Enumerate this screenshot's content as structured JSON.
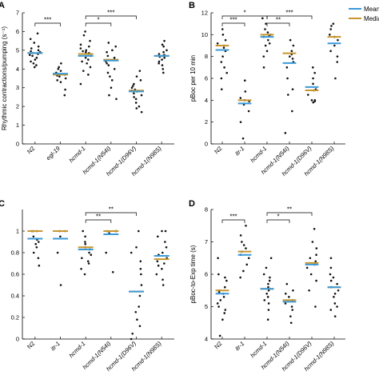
{
  "colors": {
    "mean": "#3a9ad9",
    "median": "#c8962d",
    "points": "#111111"
  },
  "legend": [
    {
      "name": "Mean",
      "color": "#3a9ad9"
    },
    {
      "name": "Median",
      "color": "#c8962d"
    }
  ],
  "chart_data": [
    {
      "panel": "A",
      "type": "scatter",
      "ylabel": "Rhythmic contractions/pumping (s⁻¹)",
      "ylim": [
        0,
        7
      ],
      "yticks": [
        0,
        1,
        2,
        3,
        4,
        5,
        6,
        7
      ],
      "categories": [
        {
          "label": "N2",
          "italic": false
        },
        {
          "label": "egl-19",
          "italic": true
        },
        {
          "label": "hcmd-1",
          "italic": true
        },
        {
          "label": "hcmd-1(N54I)",
          "italic": true
        },
        {
          "label": "hcmd-1(D96V)",
          "italic": true
        },
        {
          "label": "hcmd-1(N98S)",
          "italic": true
        }
      ],
      "mean": [
        4.85,
        3.75,
        4.7,
        4.45,
        2.8,
        4.7
      ],
      "median": [
        4.85,
        3.7,
        4.8,
        4.5,
        2.85,
        4.7
      ],
      "points": [
        [
          5.9,
          5.6,
          5.4,
          5.2,
          5.1,
          5.0,
          4.95,
          4.9,
          4.85,
          4.8,
          4.75,
          4.7,
          4.6,
          4.5,
          4.4,
          4.3,
          4.2,
          4.1
        ],
        [
          4.3,
          4.1,
          4.0,
          3.9,
          3.8,
          3.75,
          3.7,
          3.65,
          3.6,
          3.5,
          3.4,
          3.3,
          2.9,
          2.6
        ],
        [
          6.0,
          5.8,
          5.5,
          5.3,
          5.2,
          5.1,
          5.0,
          4.95,
          4.9,
          4.85,
          4.8,
          4.7,
          4.6,
          4.5,
          4.4,
          4.3,
          4.1,
          3.9,
          3.7,
          3.2
        ],
        [
          5.4,
          5.2,
          5.0,
          4.9,
          4.7,
          4.6,
          4.5,
          4.4,
          4.3,
          4.2,
          4.0,
          3.8,
          3.6,
          3.4,
          3.0,
          2.6,
          2.4
        ],
        [
          3.9,
          3.6,
          3.4,
          3.2,
          3.1,
          3.0,
          2.9,
          2.85,
          2.8,
          2.7,
          2.6,
          2.5,
          2.4,
          2.2,
          2.0,
          1.9,
          1.7
        ],
        [
          5.5,
          5.3,
          5.2,
          5.0,
          4.9,
          4.8,
          4.75,
          4.7,
          4.65,
          4.6,
          4.5,
          4.4,
          4.3,
          4.2,
          4.0,
          3.8
        ]
      ],
      "significance": [
        {
          "from": 0,
          "to": 1,
          "label": "***",
          "level": 0
        },
        {
          "from": 2,
          "to": 4,
          "label": "***",
          "level": 1
        },
        {
          "from": 2,
          "to": 3,
          "label": "*",
          "level": 0
        }
      ]
    },
    {
      "panel": "B",
      "type": "scatter",
      "ylabel": "pBoc per 10 min",
      "ylim": [
        0,
        12
      ],
      "yticks": [
        0,
        2,
        4,
        6,
        8,
        10,
        12
      ],
      "categories": [
        {
          "label": "N2",
          "italic": false
        },
        {
          "label": "itr-1",
          "italic": true
        },
        {
          "label": "hcmd-1",
          "italic": true
        },
        {
          "label": "hcmd-1(N54I)",
          "italic": true
        },
        {
          "label": "hcmd-1(D96V)",
          "italic": true
        },
        {
          "label": "hcmd-1(N98S)",
          "italic": true
        }
      ],
      "mean": [
        8.6,
        3.7,
        9.8,
        7.4,
        5.2,
        9.2
      ],
      "median": [
        9.0,
        4.0,
        10.0,
        8.3,
        4.9,
        9.8
      ],
      "points": [
        [
          10.5,
          10.0,
          9.5,
          9.2,
          9.0,
          8.8,
          8.5,
          8.0,
          7.5,
          7.0,
          6.5,
          6.0,
          5.0
        ],
        [
          5.8,
          4.8,
          4.2,
          4.0,
          3.9,
          3.6,
          3.0,
          2.0,
          0.5
        ],
        [
          11.5,
          11.0,
          10.5,
          10.2,
          10.0,
          9.9,
          9.8,
          9.5,
          9.2,
          9.0,
          8.5,
          8.0,
          7.0
        ],
        [
          9.5,
          9.0,
          8.5,
          8.2,
          8.0,
          7.8,
          7.5,
          7.0,
          6.0,
          5.0,
          4.5,
          3.0,
          1.0
        ],
        [
          7.0,
          6.5,
          6.0,
          5.5,
          5.0,
          4.9,
          4.5,
          4.0,
          4.0,
          3.8,
          3.9
        ],
        [
          11.0,
          10.8,
          10.5,
          10.0,
          9.8,
          9.5,
          9.0,
          8.5,
          8.0,
          7.5,
          6.0
        ]
      ],
      "significance": [
        {
          "from": 0,
          "to": 1,
          "label": "***",
          "level": 0
        },
        {
          "from": 0,
          "to": 2,
          "label": "*",
          "level": 1
        },
        {
          "from": 2,
          "to": 4,
          "label": "***",
          "level": 1
        },
        {
          "from": 2,
          "to": 3,
          "label": "**",
          "level": 0
        }
      ]
    },
    {
      "panel": "C",
      "type": "scatter",
      "ylabel": "",
      "ylim": [
        0,
        1.2
      ],
      "yticks": [
        0,
        0.2,
        0.4,
        0.6,
        0.8,
        1
      ],
      "categories": [
        {
          "label": "N2",
          "italic": false
        },
        {
          "label": "itr-1",
          "italic": true
        },
        {
          "label": "hcmd-1",
          "italic": true
        },
        {
          "label": "hcmd-1(N54I)",
          "italic": true
        },
        {
          "label": "hcmd-1(D96V)",
          "italic": true
        },
        {
          "label": "hcmd-1(N98S)",
          "italic": true
        }
      ],
      "mean": [
        0.93,
        0.93,
        0.83,
        0.97,
        0.44,
        0.77
      ],
      "median": [
        1.0,
        1.0,
        0.85,
        1.0,
        0.44,
        0.74
      ],
      "points": [
        [
          1.0,
          1.0,
          1.0,
          0.95,
          0.92,
          0.9,
          0.88,
          0.85,
          0.8,
          0.75,
          0.68
        ],
        [
          1.0,
          1.0,
          0.95,
          0.8,
          0.5
        ],
        [
          1.0,
          0.95,
          0.9,
          0.88,
          0.85,
          0.83,
          0.8,
          0.78,
          0.75,
          0.72,
          0.7,
          0.65,
          0.6
        ],
        [
          1.0,
          1.0,
          1.0,
          0.98,
          0.8,
          0.62
        ],
        [
          1.0,
          0.85,
          0.8,
          0.72,
          0.65,
          0.6,
          0.5,
          0.4,
          0.3,
          0.25,
          0.18,
          0.12,
          0.05,
          0.0
        ],
        [
          1.0,
          1.0,
          0.95,
          0.9,
          0.85,
          0.8,
          0.78,
          0.75,
          0.72,
          0.7,
          0.68,
          0.65,
          0.6,
          0.55,
          0.5
        ]
      ],
      "significance": [
        {
          "from": 2,
          "to": 4,
          "label": "**",
          "level": 1
        },
        {
          "from": 2,
          "to": 3,
          "label": "**",
          "level": 0
        }
      ]
    },
    {
      "panel": "D",
      "type": "scatter",
      "ylabel": "pBoc-to-Exp time (s)",
      "ylim": [
        4,
        8
      ],
      "yticks": [
        4,
        5,
        6,
        7,
        8
      ],
      "categories": [
        {
          "label": "N2",
          "italic": false
        },
        {
          "label": "itr-1",
          "italic": true
        },
        {
          "label": "hcmd-1",
          "italic": true
        },
        {
          "label": "hcmd-1(N54I)",
          "italic": true
        },
        {
          "label": "hcmd-1(D96V)",
          "italic": true
        },
        {
          "label": "hcmd-1(N98S)",
          "italic": true
        }
      ],
      "mean": [
        5.4,
        6.6,
        5.55,
        5.15,
        6.3,
        5.6
      ],
      "median": [
        5.5,
        6.7,
        5.55,
        5.2,
        6.35,
        5.6
      ],
      "points": [
        [
          6.5,
          6.0,
          5.9,
          5.8,
          5.6,
          5.5,
          5.45,
          5.4,
          5.3,
          5.2,
          5.1,
          5.0,
          4.9,
          4.8,
          4.6,
          4.1
        ],
        [
          7.5,
          7.2,
          7.0,
          6.9,
          6.8,
          6.7,
          6.6,
          6.5,
          6.3,
          6.1,
          5.9
        ],
        [
          6.5,
          6.2,
          6.0,
          5.9,
          5.8,
          5.7,
          5.6,
          5.5,
          5.4,
          5.3,
          5.2,
          5.1,
          4.9,
          4.6
        ],
        [
          5.7,
          5.5,
          5.4,
          5.3,
          5.2,
          5.1,
          5.0,
          4.9,
          4.7,
          4.5
        ],
        [
          7.4,
          7.0,
          6.8,
          6.6,
          6.5,
          6.4,
          6.3,
          6.2,
          6.0,
          5.8,
          5.5,
          5.0
        ],
        [
          6.5,
          6.2,
          6.0,
          5.9,
          5.8,
          5.7,
          5.6,
          5.5,
          5.4,
          5.3,
          5.1,
          5.0,
          4.9,
          4.7
        ]
      ],
      "significance": [
        {
          "from": 0,
          "to": 1,
          "label": "***",
          "level": 0
        },
        {
          "from": 2,
          "to": 4,
          "label": "**",
          "level": 1
        },
        {
          "from": 2,
          "to": 3,
          "label": "*",
          "level": 0
        }
      ]
    }
  ]
}
